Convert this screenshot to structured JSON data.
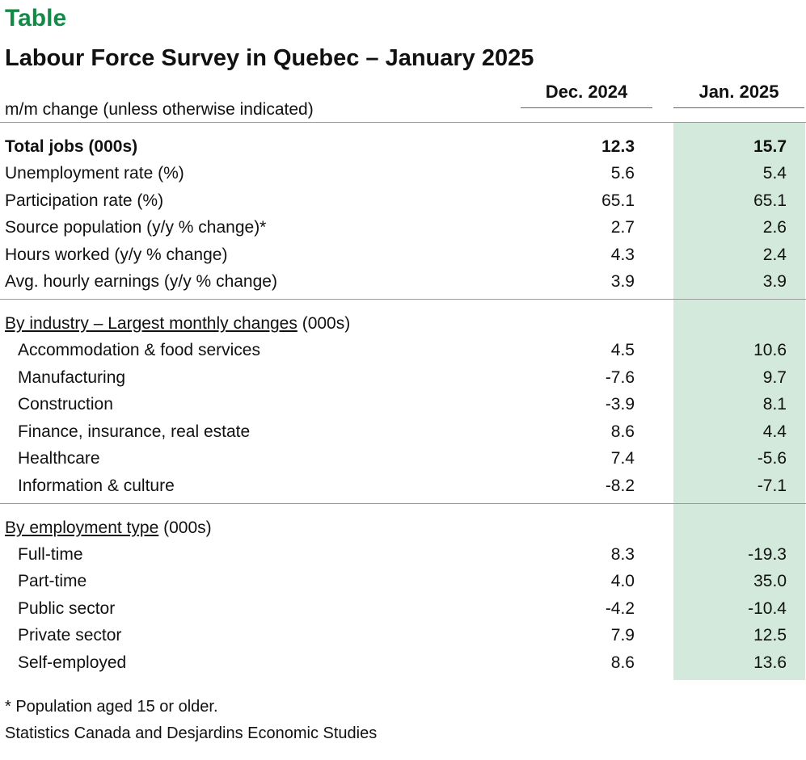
{
  "kicker": "Table",
  "title": "Labour Force Survey in Quebec – January 2025",
  "subhead": "m/m change (unless otherwise indicated)",
  "columns": [
    "Dec. 2024",
    "Jan. 2025"
  ],
  "main_rows": [
    {
      "label": "Total jobs (000s)",
      "dec": "12.3",
      "jan": "15.7"
    },
    {
      "label": "Unemployment rate (%)",
      "dec": "5.6",
      "jan": "5.4"
    },
    {
      "label": "Participation rate (%)",
      "dec": "65.1",
      "jan": "65.1"
    },
    {
      "label": "Source population (y/y % change)*",
      "dec": "2.7",
      "jan": "2.6"
    },
    {
      "label": "Hours worked (y/y % change)",
      "dec": "4.3",
      "jan": "2.4"
    },
    {
      "label": "Avg. hourly earnings (y/y % change)",
      "dec": "3.9",
      "jan": "3.9"
    }
  ],
  "industry": {
    "heading": "By industry – Largest monthly changes",
    "unit": " (000s)",
    "rows": [
      {
        "label": "Accommodation & food services",
        "dec": "4.5",
        "jan": "10.6"
      },
      {
        "label": "Manufacturing",
        "dec": "-7.6",
        "jan": "9.7"
      },
      {
        "label": "Construction",
        "dec": "-3.9",
        "jan": "8.1"
      },
      {
        "label": "Finance, insurance, real estate",
        "dec": "8.6",
        "jan": "4.4"
      },
      {
        "label": "Healthcare",
        "dec": "7.4",
        "jan": "-5.6"
      },
      {
        "label": "Information & culture",
        "dec": "-8.2",
        "jan": "-7.1"
      }
    ]
  },
  "employment": {
    "heading": "By employment type",
    "unit": " (000s)",
    "rows": [
      {
        "label": "Full-time",
        "dec": "8.3",
        "jan": "-19.3"
      },
      {
        "label": "Part-time",
        "dec": "4.0",
        "jan": "35.0"
      },
      {
        "label": "Public sector",
        "dec": "-4.2",
        "jan": "-10.4"
      },
      {
        "label": "Private sector",
        "dec": "7.9",
        "jan": "12.5"
      },
      {
        "label": "Self-employed",
        "dec": "8.6",
        "jan": "13.6"
      }
    ]
  },
  "footnote": "* Population aged 15 or older.",
  "source": "Statistics Canada and Desjardins Economic Studies"
}
